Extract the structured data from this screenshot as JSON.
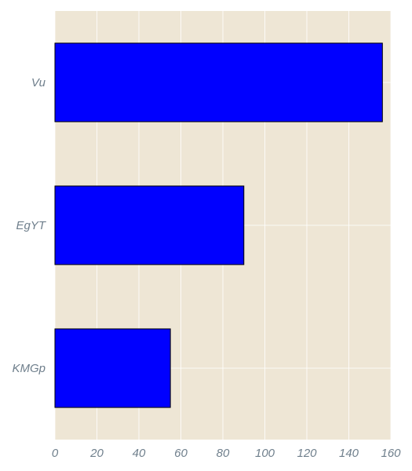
{
  "chart_data": {
    "type": "bar",
    "orientation": "horizontal",
    "title": "",
    "xlabel": "",
    "ylabel": "",
    "categories": [
      "Vu",
      "EgYT",
      "KMGp"
    ],
    "values": [
      156,
      90,
      55
    ],
    "xlim": [
      0,
      160
    ],
    "xticks": [
      0,
      20,
      40,
      60,
      80,
      100,
      120,
      140,
      160
    ],
    "grid": true,
    "colors": {
      "background": "#eee6d5",
      "bar": "#0000ff",
      "bar_edge": "#000000",
      "grid": "#ffffff",
      "tick_text": "#6f7f8c"
    }
  }
}
